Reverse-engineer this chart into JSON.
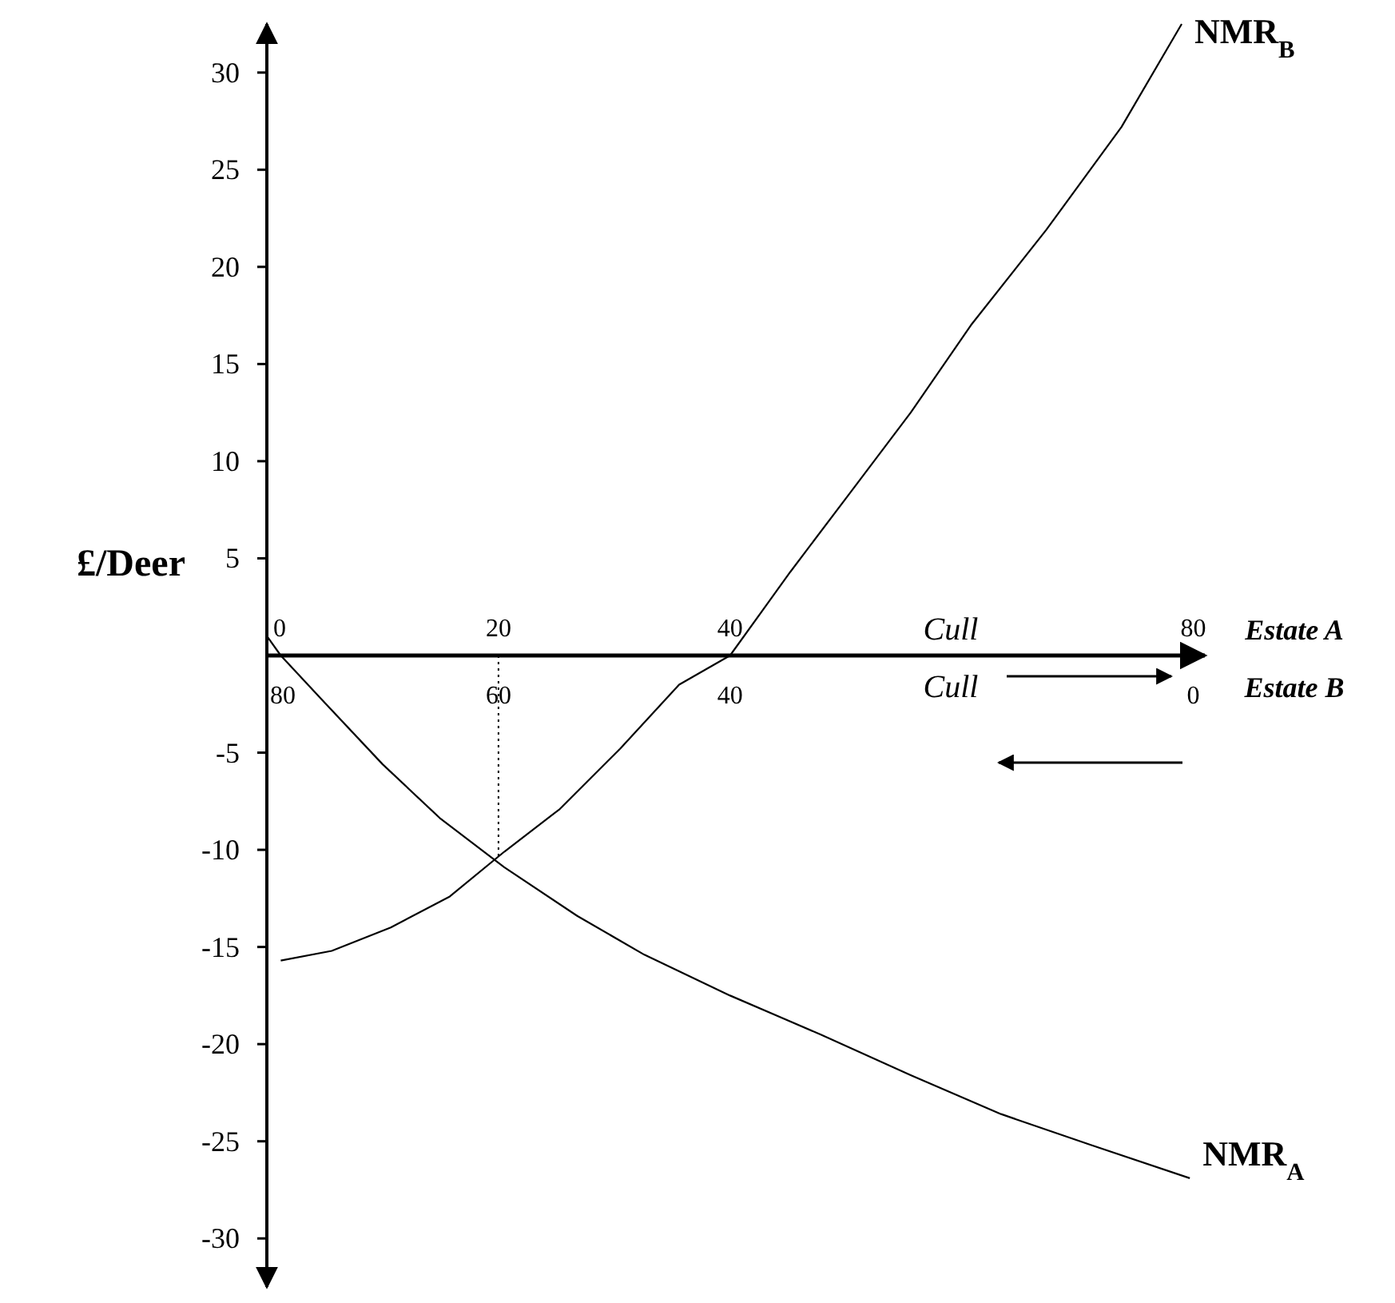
{
  "chart_data": {
    "type": "line",
    "ylabel": "£/Deer",
    "xlim": [
      0,
      81
    ],
    "ylim": [
      -32.5,
      32.5
    ],
    "xticks": [
      0,
      20,
      40,
      80
    ],
    "x2lim": [
      80,
      -1
    ],
    "x2ticks": [
      80,
      60,
      40,
      0
    ],
    "yticks": [
      -30,
      -25,
      -20,
      -15,
      -10,
      -5,
      5,
      10,
      15,
      20,
      25,
      30
    ],
    "marker": "none",
    "series": [
      {
        "name": "NMR$_{B}$",
        "color": "#000000",
        "x": [
          1.2,
          5.6,
          10.7,
          15.8,
          20.5,
          25.3,
          30.5,
          35.6,
          40,
          45.2,
          50.4,
          55.6,
          60.8,
          67.3,
          73.8,
          79
        ],
        "values": [
          -15.7,
          -15.2,
          -14,
          -12.4,
          -10.1,
          -7.9,
          -4.8,
          -1.5,
          0,
          4.3,
          8.4,
          12.5,
          17,
          21.9,
          27.2,
          32.5
        ]
      },
      {
        "name": "NMR$_{A}$",
        "color": "#000000",
        "x": [
          0,
          1.2,
          4.8,
          10,
          15,
          20.5,
          26.8,
          32.6,
          40,
          47.8,
          55.6,
          63.4,
          71.2,
          79.7
        ],
        "values": [
          1,
          0,
          -2.3,
          -5.6,
          -8.4,
          -10.9,
          -13.4,
          -15.4,
          -17.5,
          -19.5,
          -21.6,
          -23.6,
          -25.2,
          -26.9
        ]
      },
      {
        "color": "#000000",
        "line_style": "dotted",
        "x": [
          20,
          20
        ],
        "values": [
          0,
          -10.5
        ]
      }
    ],
    "annotations": [
      "Cull",
      "Estate A",
      "Cull",
      "Estate B"
    ]
  }
}
